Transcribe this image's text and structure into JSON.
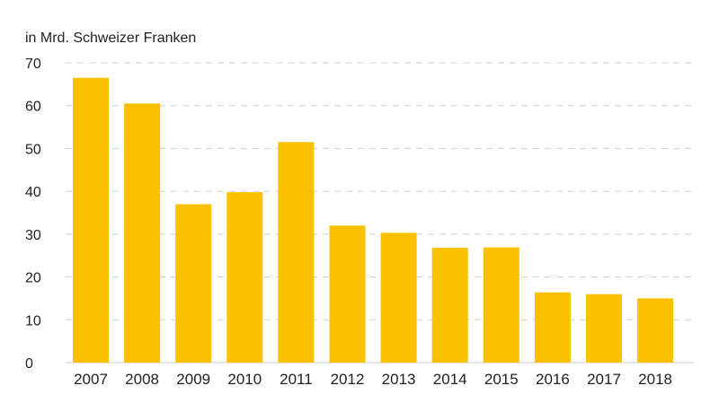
{
  "chart_data": {
    "type": "bar",
    "unit_label": "in Mrd. Schweizer Franken",
    "title": "",
    "xlabel": "",
    "ylabel": "",
    "categories": [
      "2007",
      "2008",
      "2009",
      "2010",
      "2011",
      "2012",
      "2013",
      "2014",
      "2015",
      "2016",
      "2017",
      "2018"
    ],
    "values": [
      66.5,
      60.5,
      37.0,
      39.8,
      51.5,
      32.0,
      30.3,
      26.8,
      26.9,
      16.4,
      16.0,
      15.0
    ],
    "ylim": [
      0,
      70
    ],
    "yticks": [
      0,
      10,
      20,
      30,
      40,
      50,
      60,
      70
    ],
    "grid": true,
    "legend": "none",
    "colors": {
      "bar": "#FBC100",
      "grid": "#cfcfcf",
      "text": "#222222"
    }
  }
}
